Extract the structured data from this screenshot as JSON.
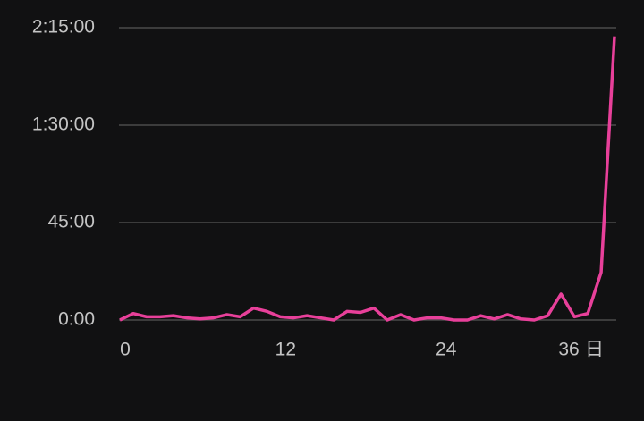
{
  "chart_data": {
    "type": "line",
    "x": [
      0,
      1,
      2,
      3,
      4,
      5,
      6,
      7,
      8,
      9,
      10,
      11,
      12,
      13,
      14,
      15,
      16,
      17,
      18,
      19,
      20,
      21,
      22,
      23,
      24,
      25,
      26,
      27,
      28,
      29,
      30,
      31,
      32,
      33,
      34,
      35,
      36,
      37
    ],
    "series": [
      {
        "color": "#e8409a",
        "values": [
          0,
          3,
          1.5,
          1.5,
          2,
          1,
          0.5,
          1,
          2.5,
          1.5,
          5.5,
          4,
          1.5,
          1,
          2,
          1,
          0,
          4,
          3.5,
          5.5,
          0,
          2.5,
          0,
          1,
          1,
          0,
          0,
          2,
          0.5,
          2.5,
          0.5,
          0,
          2,
          12,
          1.5,
          3,
          22,
          131
        ]
      }
    ],
    "xlim": [
      0,
      37
    ],
    "xticks": [
      0,
      12,
      24,
      36
    ],
    "x_label": "日",
    "ylim": [
      0,
      135
    ],
    "yticks": [
      {
        "value": 0,
        "label": "0:00"
      },
      {
        "value": 45,
        "label": "45:00"
      },
      {
        "value": 90,
        "label": "1:30:00"
      },
      {
        "value": 135,
        "label": "2:15:00"
      }
    ],
    "grid": true
  }
}
